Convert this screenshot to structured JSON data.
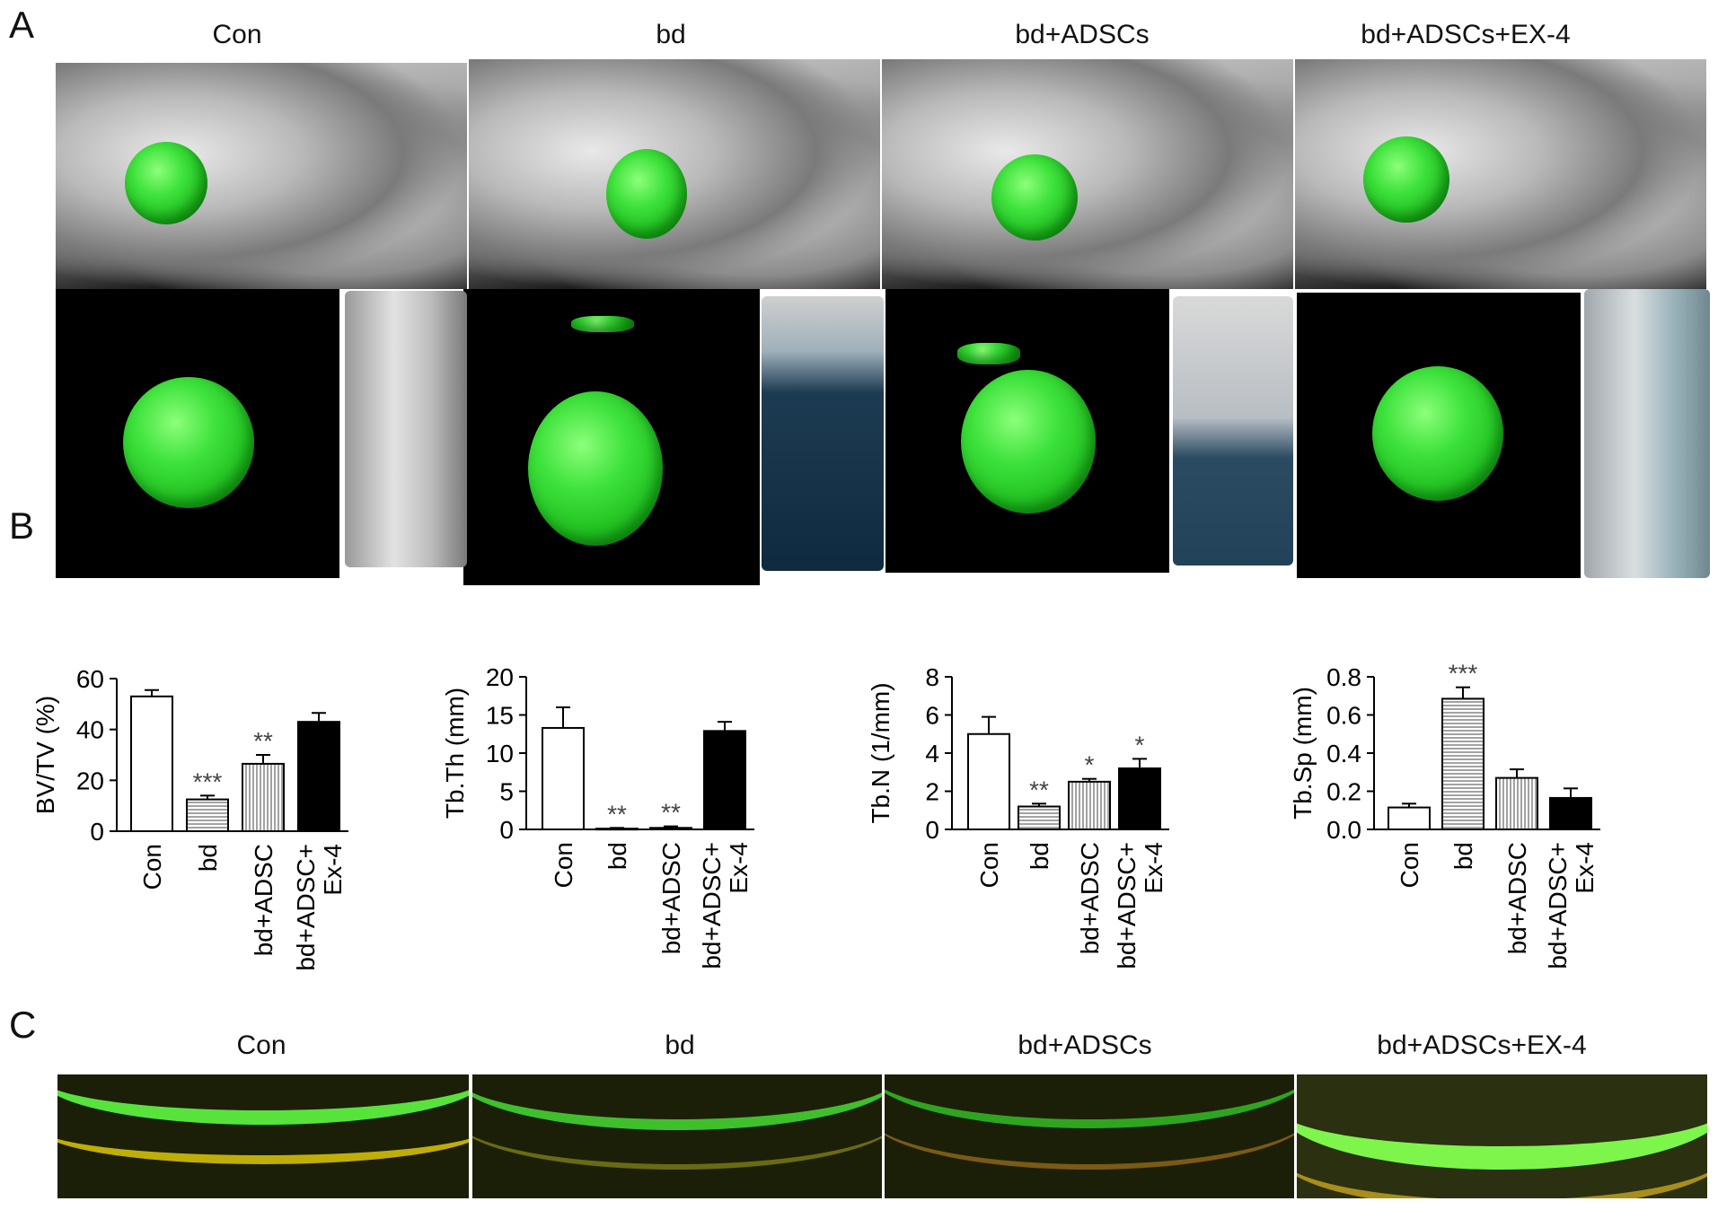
{
  "panels": {
    "a": "A",
    "b": "B",
    "c": "C"
  },
  "groups": [
    "Con",
    "bd",
    "bd+ADSCs",
    "bd+ADSCs+EX-4"
  ],
  "colors": {
    "bar_con": "#ffffff",
    "bar_bd": "hatched-horizontal",
    "bar_adsc": "hatched-vertical",
    "bar_ex4": "#000000",
    "fluor_green": "#4be03a",
    "fluor_yellow": "#c9b400"
  },
  "chart_data": [
    {
      "type": "bar",
      "ylabel": "BV/TV (%)",
      "ylim": [
        0,
        60
      ],
      "yticks": [
        "0",
        "20",
        "40",
        "60"
      ],
      "categories": [
        "Con",
        "bd",
        "bd+ADSC",
        "bd+ADSC+\nEx-4"
      ],
      "values": [
        53,
        12.5,
        26.5,
        43
      ],
      "errors": [
        2.5,
        1.5,
        3.5,
        3.5
      ],
      "annotations": [
        "",
        "***",
        "**",
        ""
      ],
      "legend": "none",
      "grid": false
    },
    {
      "type": "bar",
      "ylabel": "Tb.Th (mm)",
      "ylim": [
        0,
        20
      ],
      "yticks": [
        "0",
        "5",
        "10",
        "15",
        "20"
      ],
      "categories": [
        "Con",
        "bd",
        "bd+ADSC",
        "bd+ADSC+\nEx-4"
      ],
      "values": [
        13.3,
        0.1,
        0.2,
        12.9
      ],
      "errors": [
        2.7,
        0.1,
        0.2,
        1.2
      ],
      "annotations": [
        "",
        "**",
        "**",
        ""
      ],
      "legend": "none",
      "grid": false
    },
    {
      "type": "bar",
      "ylabel": "Tb.N (1/mm)",
      "ylim": [
        0,
        8
      ],
      "yticks": [
        "0",
        "2",
        "4",
        "6",
        "8"
      ],
      "categories": [
        "Con",
        "bd",
        "bd+ADSC",
        "bd+ADSC+\nEx-4"
      ],
      "values": [
        5.0,
        1.2,
        2.5,
        3.2
      ],
      "errors": [
        0.9,
        0.15,
        0.15,
        0.5
      ],
      "annotations": [
        "",
        "**",
        "*",
        "*"
      ],
      "legend": "none",
      "grid": false
    },
    {
      "type": "bar",
      "ylabel": "Tb.Sp (mm)",
      "ylim": [
        0,
        0.8
      ],
      "yticks": [
        "0.0",
        "0.2",
        "0.4",
        "0.6",
        "0.8"
      ],
      "categories": [
        "Con",
        "bd",
        "bd+ADSC",
        "bd+ADSC+\nEx-4"
      ],
      "values": [
        0.115,
        0.685,
        0.27,
        0.165
      ],
      "errors": [
        0.02,
        0.06,
        0.045,
        0.05
      ],
      "annotations": [
        "",
        "***",
        "",
        ""
      ],
      "legend": "none",
      "grid": false
    }
  ]
}
